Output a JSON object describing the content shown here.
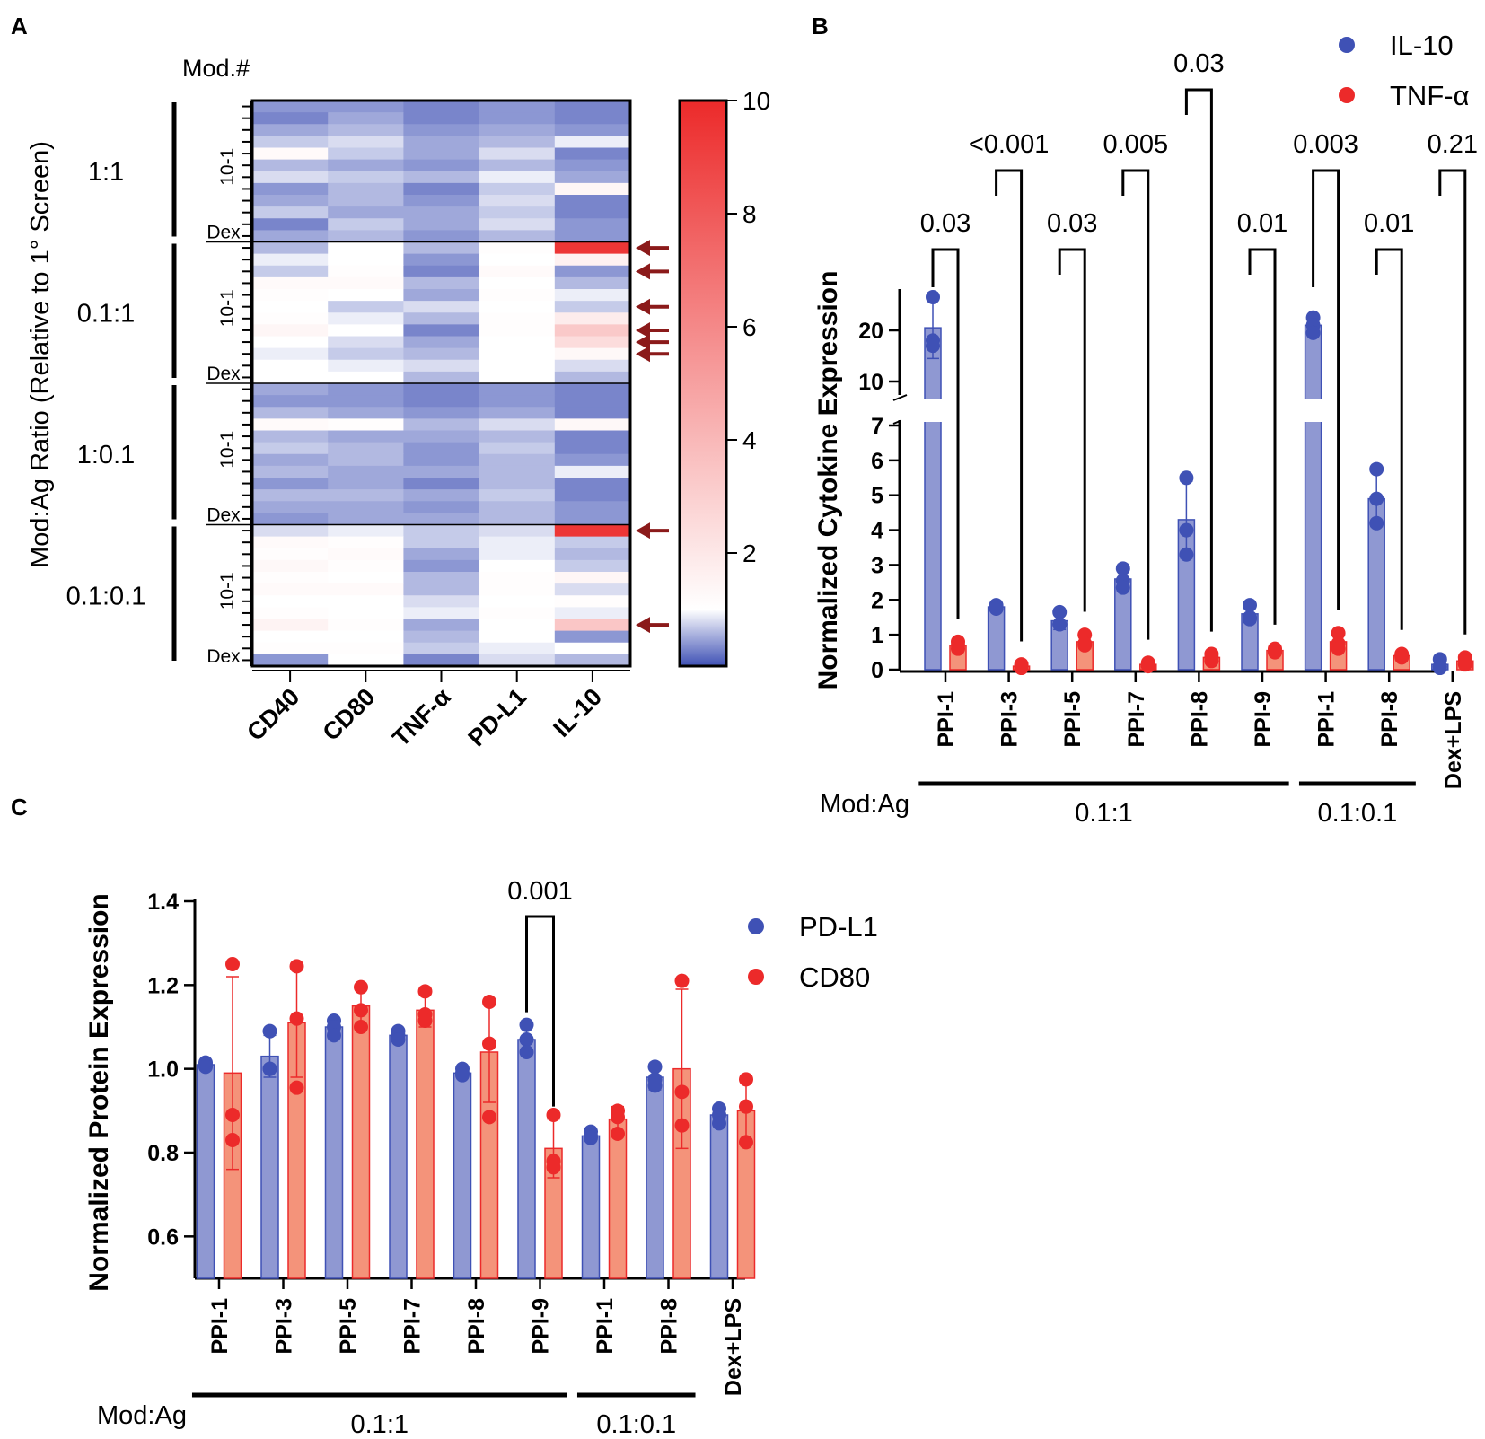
{
  "colors": {
    "blue": "#3f51b5",
    "blue_bar": "#8f98d2",
    "red": "#ec2a2a",
    "red_bar": "#f4937a",
    "arrow": "#8b1a1a"
  },
  "panel_labels": [
    "A",
    "B",
    "C"
  ],
  "chart_data": [
    {
      "type": "heatmap",
      "panel": "A",
      "title": "Mod.#",
      "ylabel": "Mod:Ag Ratio (Relative to 1° Screen)",
      "columns": [
        "CD40",
        "CD80",
        "TNF-α",
        "PD-L1",
        "IL-10"
      ],
      "groups": [
        {
          "ratio": "1:1",
          "row_labels": [
            "10-1",
            "Dex"
          ]
        },
        {
          "ratio": "0.1:1",
          "row_labels": [
            "10-1",
            "Dex"
          ]
        },
        {
          "ratio": "1:0.1",
          "row_labels": [
            "10-1",
            "Dex"
          ]
        },
        {
          "ratio": "0.1:0.1",
          "row_labels": [
            "10-1",
            "Dex"
          ]
        }
      ],
      "colorbar": {
        "min": 0,
        "max": 10,
        "ticks": [
          2,
          4,
          6,
          8,
          10
        ],
        "low": "#3f51b5",
        "mid_value": 1,
        "high": "#ec2a2a"
      },
      "rows_per_group": 12,
      "values": [
        [
          0.4,
          0.4,
          0.3,
          0.4,
          0.3
        ],
        [
          0.3,
          0.5,
          0.3,
          0.4,
          0.3
        ],
        [
          0.5,
          0.6,
          0.4,
          0.5,
          0.4
        ],
        [
          0.7,
          0.8,
          0.5,
          0.6,
          0.9
        ],
        [
          1.2,
          0.7,
          0.5,
          0.8,
          0.3
        ],
        [
          0.6,
          0.5,
          0.4,
          0.6,
          0.4
        ],
        [
          0.8,
          0.7,
          0.6,
          0.9,
          0.5
        ],
        [
          0.4,
          0.6,
          0.3,
          0.7,
          1.4
        ],
        [
          0.5,
          0.6,
          0.4,
          0.8,
          0.3
        ],
        [
          0.7,
          0.5,
          0.5,
          0.7,
          0.3
        ],
        [
          0.3,
          0.7,
          0.5,
          0.8,
          0.4
        ],
        [
          0.5,
          0.6,
          0.4,
          0.6,
          0.4
        ],
        [
          0.6,
          1.0,
          0.6,
          1.1,
          9.5
        ],
        [
          0.9,
          1.0,
          0.4,
          1.0,
          1.6
        ],
        [
          0.7,
          1.1,
          0.3,
          1.2,
          0.4
        ],
        [
          1.2,
          1.2,
          0.6,
          1.0,
          0.6
        ],
        [
          1.1,
          1.0,
          0.5,
          1.1,
          0.9
        ],
        [
          1.0,
          0.7,
          0.8,
          1.0,
          0.7
        ],
        [
          1.1,
          0.9,
          0.6,
          1.1,
          1.8
        ],
        [
          1.4,
          1.0,
          0.3,
          1.1,
          3.3
        ],
        [
          1.0,
          0.8,
          0.5,
          1.0,
          2.5
        ],
        [
          0.9,
          0.7,
          0.6,
          1.0,
          1.3
        ],
        [
          1.0,
          0.9,
          0.8,
          1.0,
          0.8
        ],
        [
          1.0,
          1.0,
          0.6,
          1.0,
          0.6
        ],
        [
          0.5,
          0.4,
          0.3,
          0.4,
          0.3
        ],
        [
          0.4,
          0.4,
          0.3,
          0.4,
          0.3
        ],
        [
          0.6,
          0.5,
          0.4,
          0.5,
          0.3
        ],
        [
          1.2,
          1.1,
          0.6,
          0.8,
          1.3
        ],
        [
          0.6,
          0.5,
          0.5,
          0.6,
          0.3
        ],
        [
          0.7,
          0.6,
          0.4,
          0.7,
          0.3
        ],
        [
          0.5,
          0.6,
          0.4,
          0.6,
          0.4
        ],
        [
          0.6,
          0.5,
          0.5,
          0.6,
          0.9
        ],
        [
          0.4,
          0.5,
          0.3,
          0.6,
          0.3
        ],
        [
          0.6,
          0.6,
          0.5,
          0.7,
          0.3
        ],
        [
          0.5,
          0.5,
          0.4,
          0.6,
          0.4
        ],
        [
          0.4,
          0.5,
          0.5,
          0.6,
          0.4
        ],
        [
          0.8,
          0.9,
          0.7,
          0.8,
          9.5
        ],
        [
          1.2,
          1.1,
          0.7,
          0.9,
          0.7
        ],
        [
          1.1,
          1.2,
          0.5,
          0.9,
          0.6
        ],
        [
          1.3,
          1.1,
          0.4,
          1.0,
          0.7
        ],
        [
          1.1,
          1.0,
          0.6,
          1.1,
          1.4
        ],
        [
          1.2,
          1.2,
          0.6,
          1.1,
          0.8
        ],
        [
          1.0,
          1.0,
          0.8,
          1.0,
          1.1
        ],
        [
          1.1,
          1.0,
          0.9,
          1.1,
          0.9
        ],
        [
          1.5,
          1.1,
          0.5,
          1.0,
          3.4
        ],
        [
          1.0,
          1.0,
          0.6,
          1.0,
          0.4
        ],
        [
          1.1,
          1.1,
          0.7,
          0.9,
          1.0
        ],
        [
          0.4,
          1.0,
          0.3,
          0.8,
          0.6
        ]
      ],
      "arrow_rows": [
        12,
        14,
        17,
        19,
        20,
        21,
        36,
        44
      ]
    },
    {
      "type": "bar",
      "panel": "B",
      "ylabel": "Normalized Cytokine Expression",
      "categories": [
        "PPI-1",
        "PPI-3",
        "PPI-5",
        "PPI-7",
        "PPI-8",
        "PPI-9",
        "PPI-1",
        "PPI-8",
        "Dex+LPS"
      ],
      "xgroups": [
        {
          "label": "0.1:1",
          "first": 0,
          "last": 5
        },
        {
          "label": "0.1:0.1",
          "first": 6,
          "last": 7
        }
      ],
      "xgroup_title": "Mod:Ag",
      "y_ticks_lower": [
        0,
        1,
        2,
        3,
        4,
        5,
        6,
        7
      ],
      "y_ticks_upper": [
        10,
        20
      ],
      "axis_break": [
        7,
        8
      ],
      "series": [
        {
          "name": "IL-10",
          "means": [
            20.5,
            1.8,
            1.4,
            2.6,
            4.3,
            1.6,
            21.0,
            4.9,
            0.15
          ],
          "errors": [
            6.0,
            0.1,
            0.25,
            0.35,
            1.1,
            0.25,
            1.2,
            0.8,
            0.12
          ],
          "points": [
            [
              26.5,
              18,
              17
            ],
            [
              1.85,
              1.8,
              1.75
            ],
            [
              1.65,
              1.3,
              1.3
            ],
            [
              2.9,
              2.55,
              2.35
            ],
            [
              5.5,
              4.0,
              3.3
            ],
            [
              1.85,
              1.5,
              1.45
            ],
            [
              22.5,
              21,
              19.5
            ],
            [
              5.75,
              4.9,
              4.2
            ],
            [
              0.3,
              0.1,
              0.05
            ]
          ]
        },
        {
          "name": "TNF-α",
          "means": [
            0.7,
            0.1,
            0.8,
            0.15,
            0.35,
            0.55,
            0.8,
            0.4,
            0.25
          ],
          "errors": [
            0.08,
            0.05,
            0.2,
            0.05,
            0.08,
            0.08,
            0.25,
            0.08,
            0.1
          ],
          "points": [
            [
              0.8,
              0.7,
              0.6
            ],
            [
              0.15,
              0.1,
              0.05
            ],
            [
              1.0,
              0.75,
              0.7
            ],
            [
              0.2,
              0.15,
              0.1
            ],
            [
              0.45,
              0.35,
              0.25
            ],
            [
              0.6,
              0.55,
              0.5
            ],
            [
              1.05,
              0.75,
              0.6
            ],
            [
              0.45,
              0.4,
              0.35
            ],
            [
              0.35,
              0.25,
              0.15
            ]
          ]
        }
      ],
      "comparisons": [
        {
          "cat": 0,
          "p": "0.03"
        },
        {
          "cat": 1,
          "p": "<0.001"
        },
        {
          "cat": 2,
          "p": "0.03"
        },
        {
          "cat": 3,
          "p": "0.005"
        },
        {
          "cat": 4,
          "p": "0.03"
        },
        {
          "cat": 5,
          "p": "0.01"
        },
        {
          "cat": 6,
          "p": "0.003"
        },
        {
          "cat": 7,
          "p": "0.01"
        },
        {
          "cat": 8,
          "p": "0.21"
        }
      ]
    },
    {
      "type": "bar",
      "panel": "C",
      "ylabel": "Normalized Protein Expression",
      "categories": [
        "PPI-1",
        "PPI-3",
        "PPI-5",
        "PPI-7",
        "PPI-8",
        "PPI-9",
        "PPI-1",
        "PPI-8",
        "Dex+LPS"
      ],
      "xgroups": [
        {
          "label": "0.1:1",
          "first": 0,
          "last": 5
        },
        {
          "label": "0.1:0.1",
          "first": 6,
          "last": 7
        }
      ],
      "xgroup_title": "Mod:Ag",
      "ylim": [
        0.5,
        1.4
      ],
      "y_ticks": [
        0.6,
        0.8,
        1.0,
        1.2,
        1.4
      ],
      "y_tick_labels": [
        "0.6",
        "0.8",
        "1.0",
        "1.2",
        "1.4"
      ],
      "series": [
        {
          "name": "PD-L1",
          "means": [
            1.01,
            1.03,
            1.1,
            1.08,
            0.99,
            1.07,
            0.84,
            0.98,
            0.89
          ],
          "errors": [
            0.005,
            0.05,
            0.02,
            0.01,
            0.01,
            0.035,
            0.01,
            0.03,
            0.02
          ],
          "points": [
            [
              1.015,
              1.01,
              1.005
            ],
            [
              1.09,
              1.0,
              1.0
            ],
            [
              1.115,
              1.1,
              1.08
            ],
            [
              1.09,
              1.08,
              1.07
            ],
            [
              1.0,
              0.99,
              0.985
            ],
            [
              1.105,
              1.07,
              1.04
            ],
            [
              0.85,
              0.84,
              0.835
            ],
            [
              1.005,
              0.975,
              0.96
            ],
            [
              0.905,
              0.89,
              0.87
            ]
          ]
        },
        {
          "name": "CD80",
          "means": [
            0.99,
            1.11,
            1.15,
            1.14,
            1.04,
            0.81,
            0.88,
            1.0,
            0.9
          ],
          "errors": [
            0.23,
            0.13,
            0.05,
            0.04,
            0.12,
            0.07,
            0.03,
            0.19,
            0.08
          ],
          "points": [
            [
              1.25,
              0.89,
              0.83
            ],
            [
              1.245,
              1.12,
              0.955
            ],
            [
              1.195,
              1.14,
              1.1
            ],
            [
              1.185,
              1.13,
              1.115
            ],
            [
              1.16,
              1.06,
              0.885
            ],
            [
              0.89,
              0.78,
              0.765
            ],
            [
              0.9,
              0.885,
              0.845
            ],
            [
              1.21,
              0.945,
              0.865
            ],
            [
              0.975,
              0.91,
              0.825
            ]
          ]
        }
      ],
      "comparisons": [
        {
          "cat": 5,
          "p": "0.001"
        }
      ]
    }
  ]
}
